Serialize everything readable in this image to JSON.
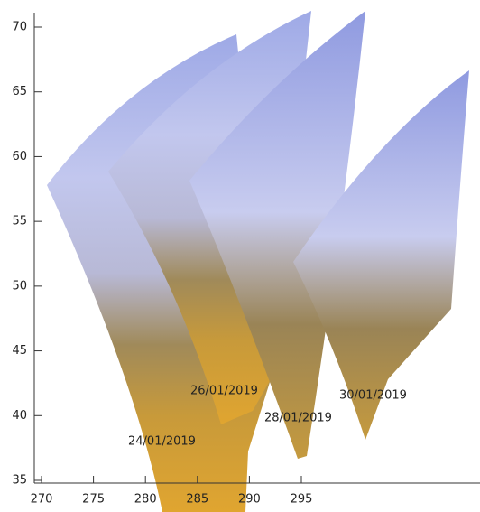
{
  "figure": {
    "xticks": [
      270,
      275,
      280,
      285,
      290,
      295
    ],
    "yticks": [
      35,
      40,
      45,
      50,
      55,
      60,
      65,
      70
    ],
    "annotations": [
      "24/01/2019",
      "26/01/2019",
      "28/01/2019",
      "30/01/2019"
    ],
    "annotation_color": "#e8201c"
  }
}
